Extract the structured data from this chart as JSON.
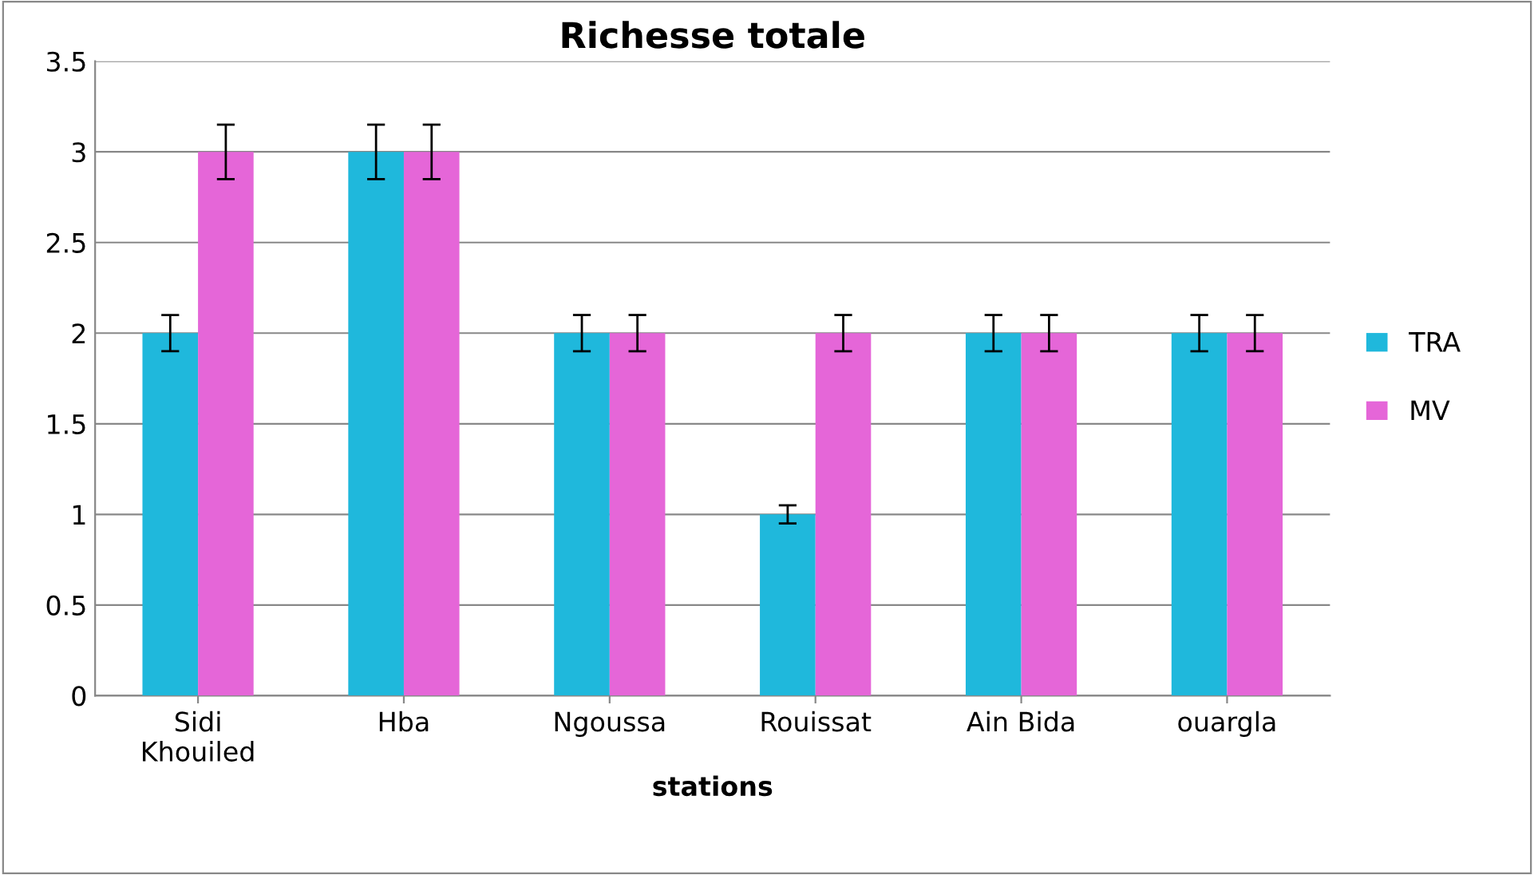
{
  "chart_data": {
    "type": "bar",
    "title": "Richesse totale",
    "xlabel": "stations",
    "categories": [
      "Sidi\nKhouiled",
      "Hba",
      "Ngoussa",
      "Rouissat",
      "Ain Bida",
      "ouargla"
    ],
    "series": [
      {
        "name": "TRA",
        "color": "#1fb8dc",
        "values": [
          2,
          3,
          2,
          1,
          2,
          2
        ],
        "errors": [
          0.1,
          0.15,
          0.1,
          0.05,
          0.1,
          0.1
        ]
      },
      {
        "name": "MV",
        "color": "#e566d8",
        "values": [
          3,
          3,
          2,
          2,
          2,
          2
        ],
        "errors": [
          0.15,
          0.15,
          0.1,
          0.1,
          0.1,
          0.1
        ]
      }
    ],
    "ylim": [
      0,
      3.5
    ],
    "yticks": [
      0,
      0.5,
      1,
      1.5,
      2,
      2.5,
      3,
      3.5
    ],
    "grid": "y",
    "legend": "right"
  }
}
